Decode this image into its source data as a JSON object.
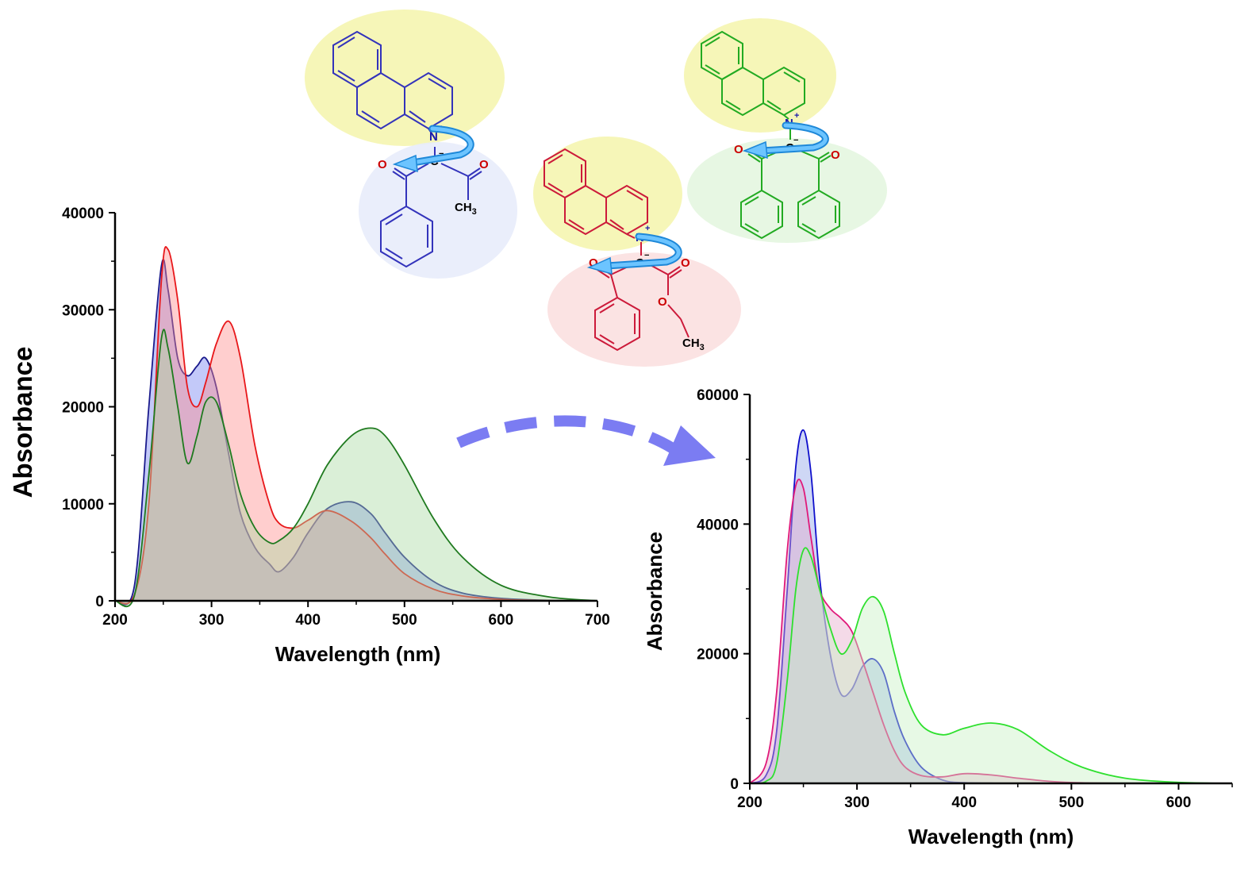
{
  "chart_data": [
    {
      "type": "area",
      "xlabel": "Wavelength (nm)",
      "ylabel": "Absorbance",
      "xlim": [
        200,
        700
      ],
      "ylim": [
        0,
        40000
      ],
      "xticks": [
        200,
        300,
        400,
        500,
        600,
        700
      ],
      "yticks": [
        0,
        10000,
        20000,
        30000,
        40000
      ],
      "x": [
        200,
        220,
        235,
        248,
        255,
        265,
        275,
        285,
        294,
        305,
        318,
        330,
        345,
        360,
        370,
        385,
        400,
        420,
        445,
        465,
        480,
        500,
        530,
        560,
        600,
        650,
        700
      ],
      "series": [
        {
          "color": "#1a1a8c",
          "fill": "#6f7ff0",
          "values": [
            0,
            1500,
            20000,
            34500,
            32000,
            25000,
            23200,
            24200,
            25000,
            22000,
            15000,
            9000,
            5500,
            3800,
            3000,
            4500,
            7000,
            9500,
            10200,
            9000,
            7000,
            4500,
            2000,
            800,
            250,
            50,
            0
          ]
        },
        {
          "color": "#e8171a",
          "fill": "#ff8a8a",
          "values": [
            0,
            600,
            10000,
            33000,
            36200,
            31000,
            22000,
            20000,
            22500,
            26500,
            28800,
            25000,
            16000,
            10000,
            8000,
            7500,
            8300,
            9300,
            8200,
            6500,
            4800,
            2800,
            1200,
            500,
            150,
            30,
            0
          ]
        },
        {
          "color": "#1f7a1f",
          "fill": "#a6d8a0",
          "values": [
            0,
            500,
            13000,
            27000,
            26000,
            20000,
            14200,
            17000,
            20500,
            20500,
            16000,
            11000,
            7500,
            6000,
            6200,
            7500,
            10000,
            14000,
            17000,
            17800,
            17000,
            14000,
            8500,
            4500,
            1600,
            400,
            0
          ]
        }
      ]
    },
    {
      "type": "area",
      "xlabel": "Wavelength (nm)",
      "ylabel": "Absorbance",
      "xlim": [
        200,
        650
      ],
      "ylim": [
        0,
        60000
      ],
      "xticks": [
        200,
        300,
        400,
        500,
        600
      ],
      "yticks": [
        0,
        20000,
        40000,
        60000
      ],
      "x": [
        200,
        215,
        225,
        235,
        243,
        250,
        257,
        265,
        275,
        285,
        295,
        305,
        315,
        325,
        335,
        345,
        360,
        380,
        400,
        425,
        450,
        480,
        510,
        550,
        600,
        650
      ],
      "series": [
        {
          "color": "#1010cc",
          "fill": "#8aa0e6",
          "values": [
            0,
            1200,
            8000,
            30000,
            49000,
            54500,
            48000,
            32000,
            20000,
            13800,
            14500,
            18000,
            19200,
            17000,
            11000,
            6500,
            2500,
            500,
            100,
            20,
            0,
            0,
            0,
            0,
            0,
            0
          ]
        },
        {
          "color": "#e0197a",
          "fill": "#e5a8c8",
          "values": [
            0,
            3000,
            14000,
            36000,
            46000,
            45500,
            38000,
            30000,
            27000,
            25500,
            23500,
            19000,
            14000,
            9000,
            5000,
            2500,
            1200,
            1000,
            1500,
            1300,
            800,
            300,
            80,
            10,
            0,
            0
          ]
        },
        {
          "color": "#2ee02e",
          "fill": "#c6f0c0",
          "values": [
            0,
            300,
            3000,
            16000,
            30000,
            36000,
            35000,
            30000,
            24000,
            20000,
            22000,
            27000,
            28800,
            26500,
            20000,
            14000,
            9000,
            7500,
            8500,
            9300,
            8300,
            5000,
            2500,
            800,
            150,
            0
          ]
        }
      ]
    }
  ],
  "molecules": {
    "atoms": {
      "n": "N",
      "plus": "+",
      "c": "C",
      "minus": "−",
      "o": "O",
      "ch": "CH",
      "three": "3"
    }
  }
}
